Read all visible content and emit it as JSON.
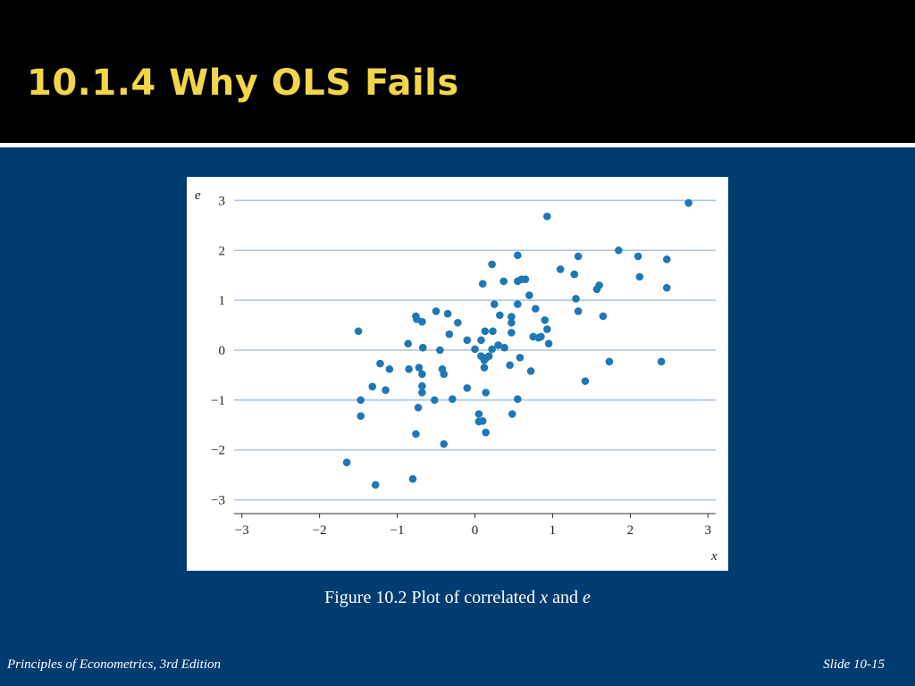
{
  "slide": {
    "title": "10.1.4  Why OLS Fails",
    "caption_prefix": "Figure 10.2  Plot of correlated ",
    "caption_x": "x",
    "caption_and": " and ",
    "caption_e": "e",
    "footer_left": "Principles of Econometrics, 3rd Edition",
    "footer_right": "Slide 10-15"
  },
  "colors": {
    "background": "#003c70",
    "title": "#f2d64a",
    "point": "#1f77b4",
    "grid": "#aac4e0"
  },
  "chart_data": {
    "type": "scatter",
    "xlabel": "x",
    "ylabel": "e",
    "xlim": [
      -3.1,
      3.1
    ],
    "ylim": [
      -3.15,
      3.15
    ],
    "xticks": [
      -3,
      -2,
      -1,
      0,
      1,
      2,
      3
    ],
    "yticks": [
      -3,
      -2,
      -1,
      0,
      1,
      2,
      3
    ],
    "xtick_labels": [
      "−3",
      "−2",
      "−1",
      "0",
      "1",
      "2",
      "3"
    ],
    "ytick_labels": [
      "−3",
      "−2",
      "−1",
      "0",
      "1",
      "2",
      "3"
    ],
    "grid": "horizontal",
    "points": [
      [
        -1.65,
        -2.25
      ],
      [
        -1.28,
        -2.7
      ],
      [
        -0.8,
        -2.58
      ],
      [
        -0.4,
        -1.88
      ],
      [
        -0.76,
        -1.68
      ],
      [
        0.14,
        -1.65
      ],
      [
        0.05,
        -1.43
      ],
      [
        0.1,
        -1.42
      ],
      [
        0.05,
        -1.28
      ],
      [
        0.48,
        -1.28
      ],
      [
        -1.47,
        -1.32
      ],
      [
        -0.73,
        -1.15
      ],
      [
        -1.47,
        -1.0
      ],
      [
        -0.52,
        -1.0
      ],
      [
        -0.29,
        -0.98
      ],
      [
        0.55,
        -0.98
      ],
      [
        0.14,
        -0.85
      ],
      [
        -0.68,
        -0.85
      ],
      [
        -1.32,
        -0.73
      ],
      [
        -1.15,
        -0.8
      ],
      [
        -0.1,
        -0.76
      ],
      [
        -0.68,
        -0.72
      ],
      [
        1.42,
        -0.62
      ],
      [
        -0.68,
        -0.48
      ],
      [
        -0.4,
        -0.48
      ],
      [
        -0.85,
        -0.38
      ],
      [
        -1.1,
        -0.38
      ],
      [
        -0.42,
        -0.38
      ],
      [
        0.12,
        -0.35
      ],
      [
        0.72,
        -0.42
      ],
      [
        -1.22,
        -0.27
      ],
      [
        -0.72,
        -0.35
      ],
      [
        0.45,
        -0.3
      ],
      [
        1.73,
        -0.23
      ],
      [
        2.4,
        -0.23
      ],
      [
        0.12,
        -0.2
      ],
      [
        0.15,
        -0.15
      ],
      [
        0.58,
        -0.15
      ],
      [
        0.08,
        -0.12
      ],
      [
        0.18,
        -0.12
      ],
      [
        -0.45,
        0.0
      ],
      [
        0.0,
        0.02
      ],
      [
        0.22,
        0.02
      ],
      [
        0.38,
        0.05
      ],
      [
        -0.67,
        0.05
      ],
      [
        0.3,
        0.1
      ],
      [
        -0.86,
        0.13
      ],
      [
        0.95,
        0.13
      ],
      [
        -0.1,
        0.2
      ],
      [
        0.08,
        0.2
      ],
      [
        0.75,
        0.27
      ],
      [
        0.82,
        0.25
      ],
      [
        0.85,
        0.27
      ],
      [
        -0.33,
        0.32
      ],
      [
        -1.5,
        0.38
      ],
      [
        0.13,
        0.38
      ],
      [
        0.23,
        0.38
      ],
      [
        0.47,
        0.35
      ],
      [
        0.93,
        0.42
      ],
      [
        -0.22,
        0.55
      ],
      [
        -0.68,
        0.57
      ],
      [
        -0.75,
        0.62
      ],
      [
        0.47,
        0.55
      ],
      [
        0.9,
        0.6
      ],
      [
        -0.76,
        0.68
      ],
      [
        0.47,
        0.67
      ],
      [
        0.32,
        0.7
      ],
      [
        1.65,
        0.68
      ],
      [
        -0.35,
        0.73
      ],
      [
        -0.5,
        0.78
      ],
      [
        1.33,
        0.78
      ],
      [
        0.78,
        0.83
      ],
      [
        0.55,
        0.92
      ],
      [
        0.25,
        0.92
      ],
      [
        1.3,
        1.03
      ],
      [
        0.7,
        1.1
      ],
      [
        1.57,
        1.22
      ],
      [
        1.6,
        1.3
      ],
      [
        2.47,
        1.25
      ],
      [
        0.1,
        1.33
      ],
      [
        0.55,
        1.38
      ],
      [
        0.6,
        1.42
      ],
      [
        0.65,
        1.42
      ],
      [
        0.37,
        1.38
      ],
      [
        2.12,
        1.47
      ],
      [
        1.28,
        1.52
      ],
      [
        1.1,
        1.62
      ],
      [
        0.22,
        1.72
      ],
      [
        2.47,
        1.82
      ],
      [
        2.1,
        1.88
      ],
      [
        1.33,
        1.88
      ],
      [
        0.55,
        1.9
      ],
      [
        1.85,
        2.0
      ],
      [
        0.93,
        2.68
      ],
      [
        2.75,
        2.95
      ]
    ]
  }
}
